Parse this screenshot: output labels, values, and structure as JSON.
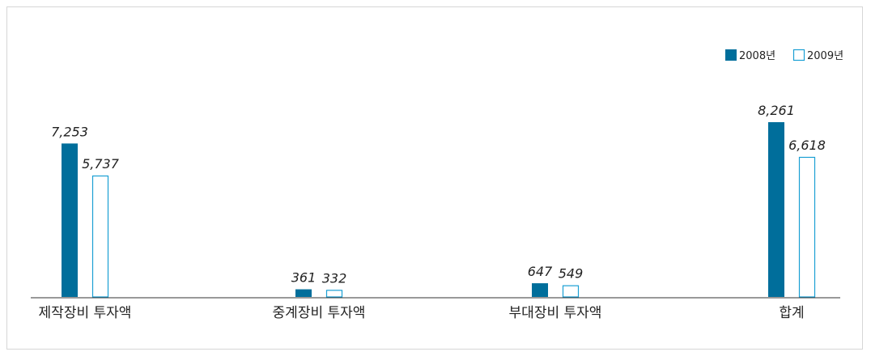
{
  "chart_data": {
    "type": "bar",
    "categories": [
      "제작장비 투자액",
      "중계장비 투자액",
      "부대장비 투자액",
      "합계"
    ],
    "series": [
      {
        "name": "2008년",
        "values": [
          7253,
          361,
          647,
          8261
        ],
        "value_labels": [
          "7,253",
          "361",
          "647",
          "8,261"
        ],
        "style": "filled",
        "color": "#006e9b"
      },
      {
        "name": "2009년",
        "values": [
          5737,
          332,
          549,
          6618
        ],
        "value_labels": [
          "5,737",
          "332",
          "549",
          "6,618"
        ],
        "style": "outline",
        "color": "#1a9fd4"
      }
    ],
    "legend": "top-right",
    "grid": false,
    "ylim": [
      0,
      8261
    ]
  }
}
